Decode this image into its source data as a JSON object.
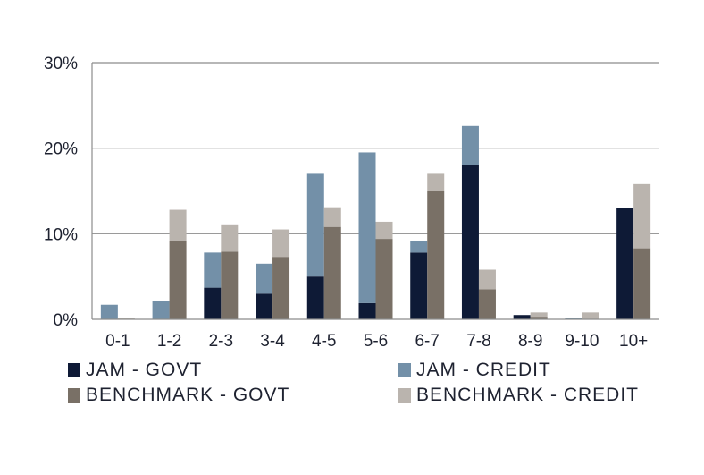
{
  "chart_data": {
    "type": "bar",
    "stacked": true,
    "categories": [
      "0-1",
      "1-2",
      "2-3",
      "3-4",
      "4-5",
      "5-6",
      "6-7",
      "7-8",
      "8-9",
      "9-10",
      "10+"
    ],
    "groups": [
      {
        "stack": "jam",
        "series": [
          {
            "name": "JAM - GOVT",
            "color": "#0e1a36",
            "values": [
              0,
              0,
              3.7,
              3.0,
              5.0,
              1.9,
              7.8,
              18.0,
              0.5,
              0,
              13.0
            ]
          },
          {
            "name": "JAM - CREDIT",
            "color": "#7390a8",
            "values": [
              1.7,
              2.1,
              4.1,
              3.5,
              12.1,
              17.6,
              1.4,
              4.6,
              0,
              0.2,
              0
            ]
          }
        ]
      },
      {
        "stack": "benchmark",
        "series": [
          {
            "name": "BENCHMARK - GOVT",
            "color": "#797066",
            "values": [
              0,
              9.2,
              7.9,
              7.3,
              10.8,
              9.4,
              15.0,
              3.5,
              0.3,
              0,
              8.3
            ]
          },
          {
            "name": "BENCHMARK - CREDIT",
            "color": "#bab4ae",
            "values": [
              0.2,
              3.6,
              3.2,
              3.2,
              2.3,
              2.0,
              2.1,
              2.3,
              0.5,
              0.8,
              7.5
            ]
          }
        ]
      }
    ],
    "yticks": [
      "0%",
      "10%",
      "20%",
      "30%"
    ],
    "ylim": [
      0,
      30
    ],
    "grid": true,
    "legend_position": "bottom"
  },
  "legend": [
    {
      "label": "JAM - GOVT",
      "color": "#0e1a36"
    },
    {
      "label": "JAM - CREDIT",
      "color": "#7390a8"
    },
    {
      "label": "BENCHMARK - GOVT",
      "color": "#797066"
    },
    {
      "label": "BENCHMARK - CREDIT",
      "color": "#bab4ae"
    }
  ]
}
